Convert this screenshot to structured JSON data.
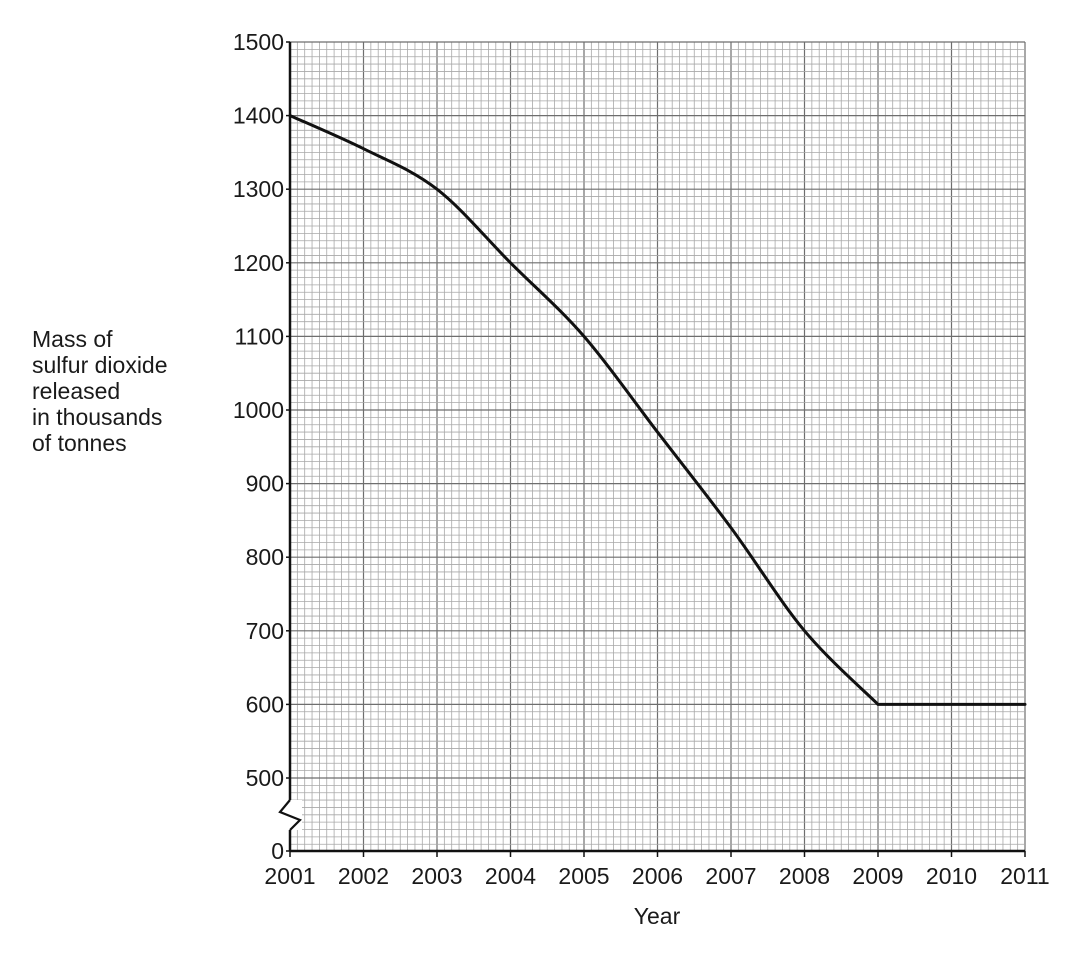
{
  "chart_data": {
    "type": "line",
    "xlabel": "Year",
    "ylabel_lines": [
      "Mass of",
      "sulfur dioxide",
      "released",
      "in thousands",
      "of tonnes"
    ],
    "x_ticks": [
      "2001",
      "2002",
      "2003",
      "2004",
      "2005",
      "2006",
      "2007",
      "2008",
      "2009",
      "2010",
      "2011"
    ],
    "y_ticks": [
      "0",
      "500",
      "600",
      "700",
      "800",
      "900",
      "1000",
      "1100",
      "1200",
      "1300",
      "1400",
      "1500"
    ],
    "xlim": [
      2001,
      2011
    ],
    "ylim": [
      0,
      1500
    ],
    "axis_break": "between 0 and 500 on y-axis",
    "grid": true,
    "series": [
      {
        "x": [
          2001,
          2002,
          2003,
          2004,
          2005,
          2006,
          2007,
          2008,
          2009,
          2010,
          2011
        ],
        "y": [
          1400,
          1355,
          1300,
          1200,
          1100,
          970,
          840,
          700,
          600,
          600,
          600
        ]
      }
    ]
  }
}
